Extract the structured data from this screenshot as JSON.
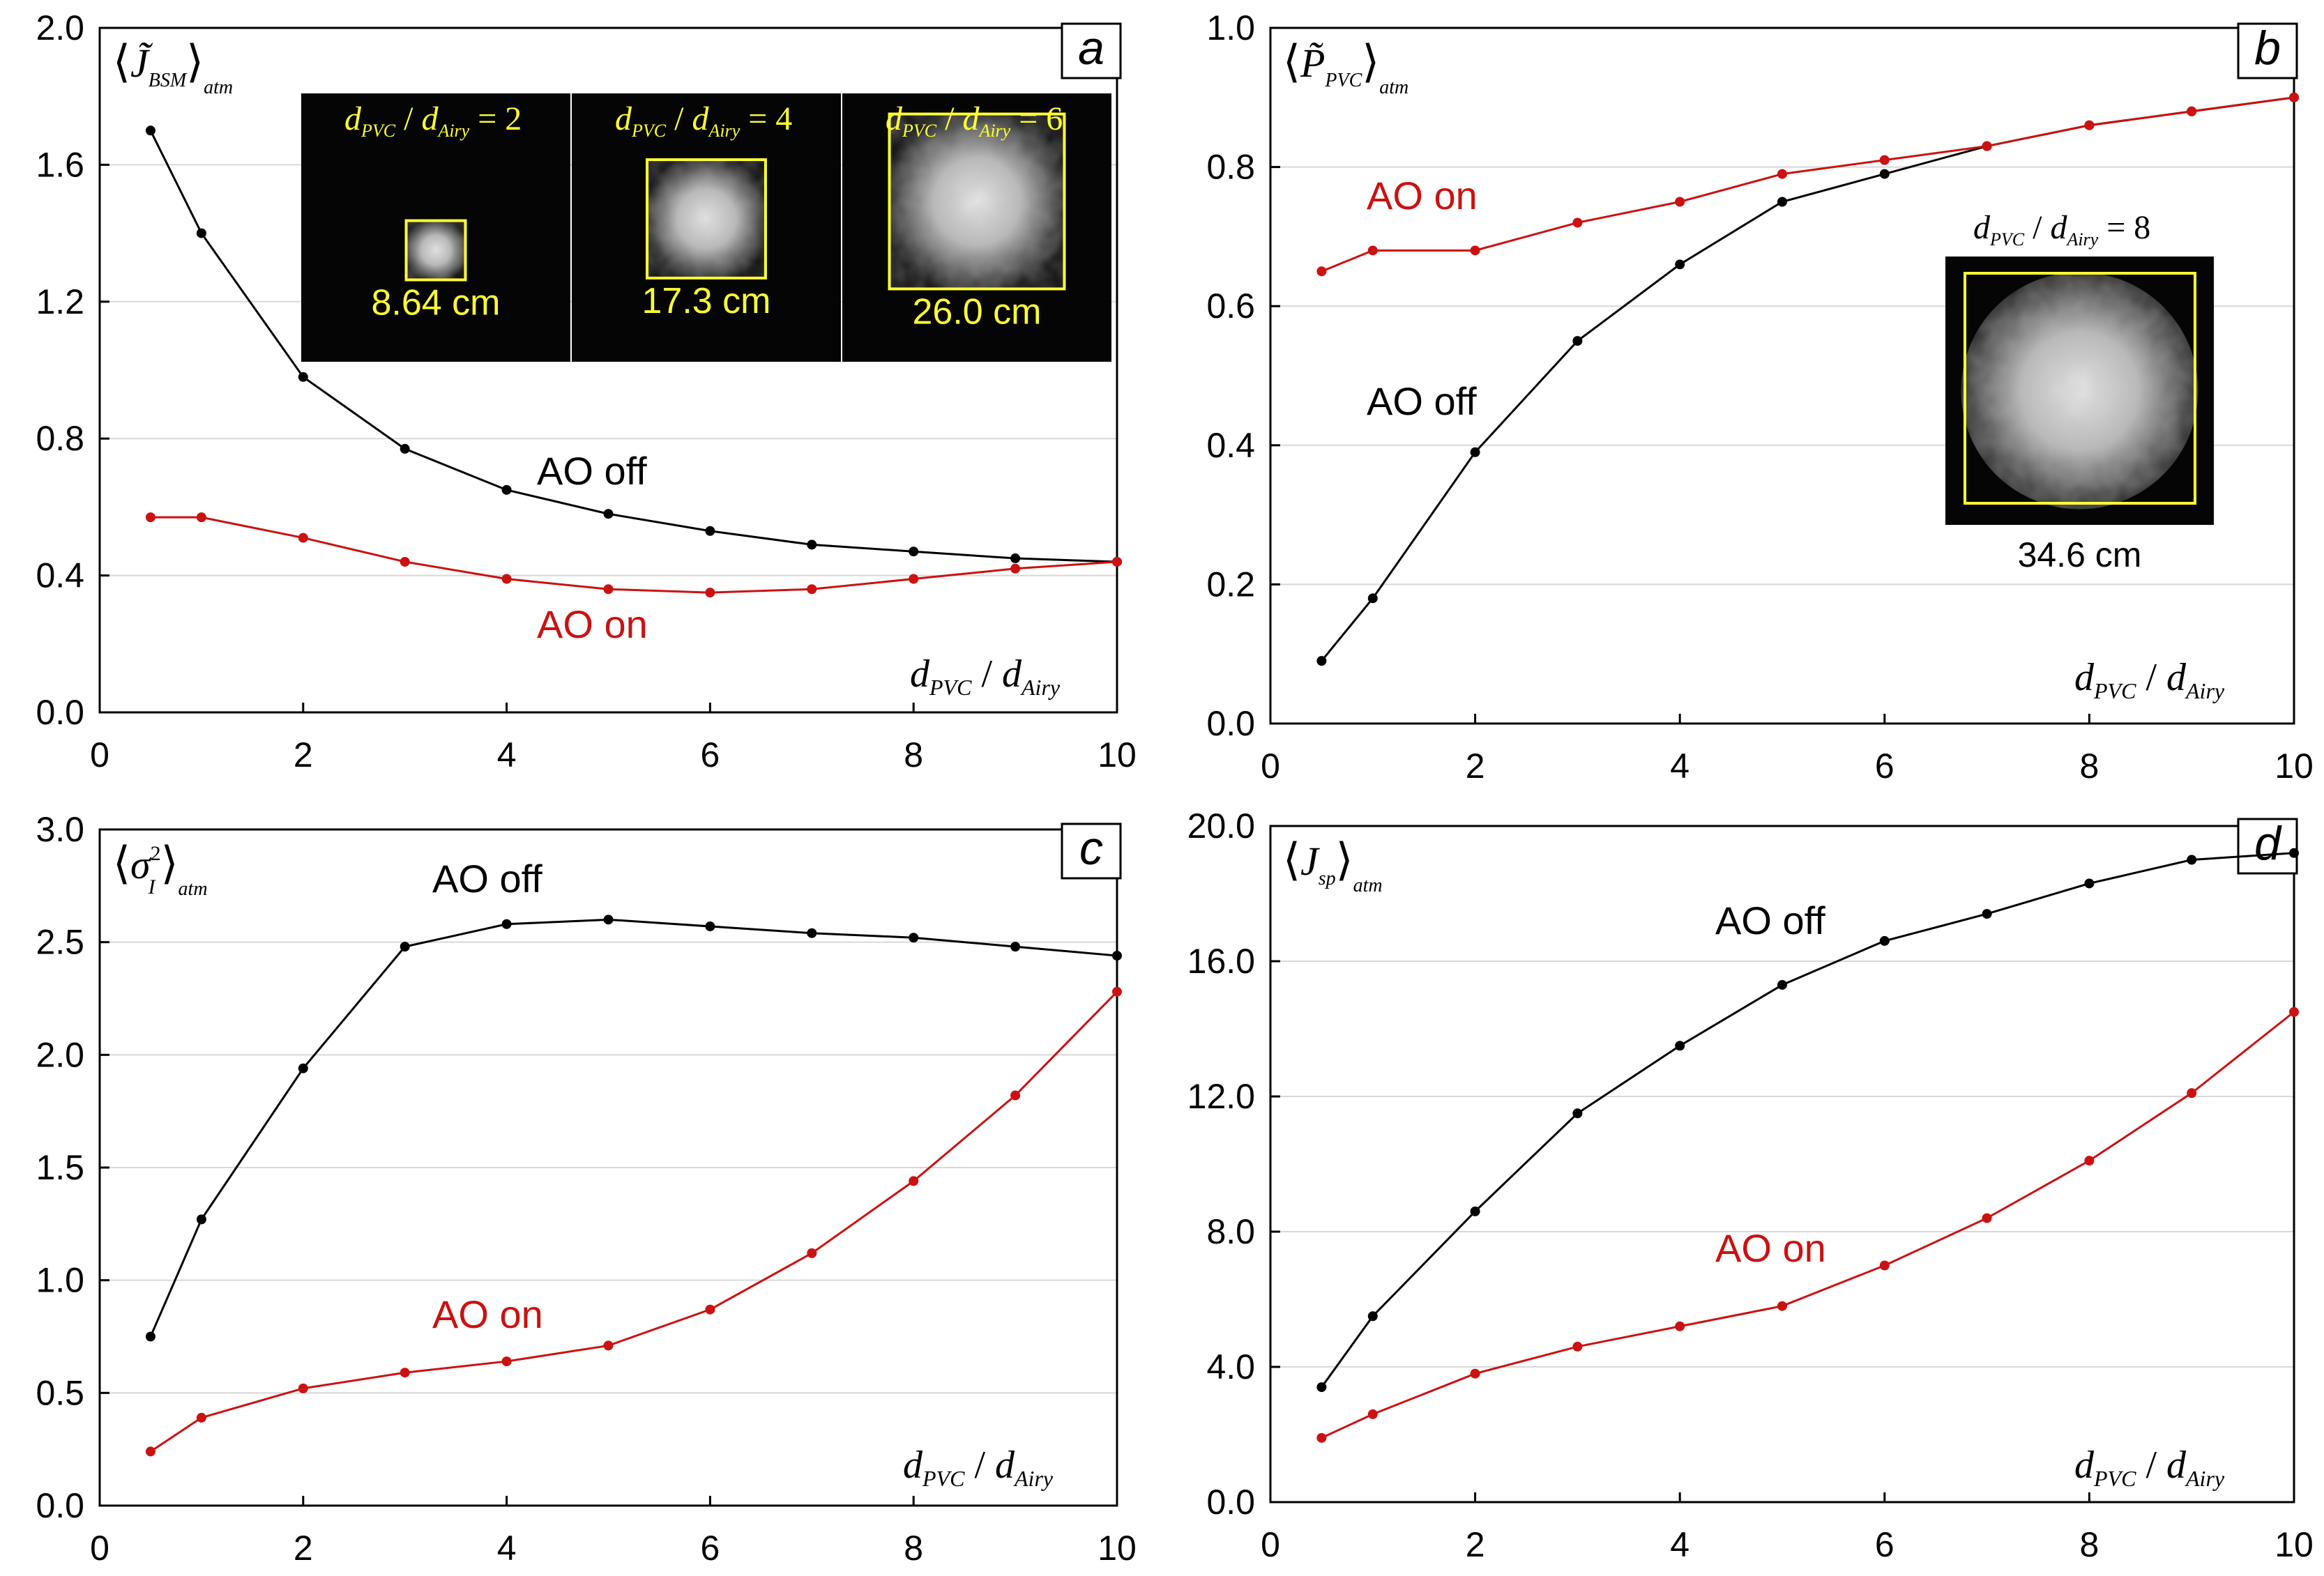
{
  "chart_data": [
    {
      "type": "line",
      "panel": "a",
      "ylabel": "⟨J̃_BSM⟩_atm",
      "ylabel_parts": {
        "open": "⟨",
        "symbol": "J̃",
        "sub": "BSM",
        "close": "⟩",
        "outer_sub": "atm"
      },
      "xlabel_parts": {
        "num": "d",
        "num_sub": "PVC",
        "sep": " / ",
        "den": "d",
        "den_sub": "Airy"
      },
      "xlim": [
        0,
        10
      ],
      "ylim": [
        0,
        2.0
      ],
      "x_ticks": [
        "0",
        "2",
        "4",
        "6",
        "8",
        "10"
      ],
      "y_ticks": [
        "0.0",
        "0.4",
        "0.8",
        "1.2",
        "1.6",
        "2.0"
      ],
      "grid": true,
      "series": [
        {
          "name": "AO off",
          "color": "#000000",
          "x": [
            0.5,
            1,
            2,
            3,
            4,
            5,
            6,
            7,
            8,
            9,
            10
          ],
          "y": [
            1.7,
            1.4,
            0.98,
            0.77,
            0.65,
            0.58,
            0.53,
            0.49,
            0.47,
            0.45,
            0.44
          ]
        },
        {
          "name": "AO on",
          "color": "#cc1111",
          "x": [
            0.5,
            1,
            2,
            3,
            4,
            5,
            6,
            7,
            8,
            9,
            10
          ],
          "y": [
            0.57,
            0.57,
            0.51,
            0.44,
            0.39,
            0.36,
            0.35,
            0.36,
            0.39,
            0.42,
            0.44
          ]
        }
      ],
      "insets": [
        {
          "label_parts": {
            "num": "d",
            "num_sub": "PVC",
            "sep": " / ",
            "den": "d",
            "den_sub": "Airy",
            "eq": " = 2"
          },
          "caption": "8.64 cm",
          "box_frac": 0.22
        },
        {
          "label_parts": {
            "num": "d",
            "num_sub": "PVC",
            "sep": " / ",
            "den": "d",
            "den_sub": "Airy",
            "eq": " = 4"
          },
          "caption": "17.3 cm",
          "box_frac": 0.44
        },
        {
          "label_parts": {
            "num": "d",
            "num_sub": "PVC",
            "sep": " / ",
            "den": "d",
            "den_sub": "Airy",
            "eq": " = 6"
          },
          "caption": "26.0 cm",
          "box_frac": 0.65
        }
      ]
    },
    {
      "type": "line",
      "panel": "b",
      "ylabel": "⟨P̃_PVC⟩_atm",
      "ylabel_parts": {
        "open": "⟨",
        "symbol": "P̃",
        "sub": "PVC",
        "close": "⟩",
        "outer_sub": "atm"
      },
      "xlabel_parts": {
        "num": "d",
        "num_sub": "PVC",
        "sep": " / ",
        "den": "d",
        "den_sub": "Airy"
      },
      "xlim": [
        0,
        10
      ],
      "ylim": [
        0,
        1.0
      ],
      "x_ticks": [
        "0",
        "2",
        "4",
        "6",
        "8",
        "10"
      ],
      "y_ticks": [
        "0.0",
        "0.2",
        "0.4",
        "0.6",
        "0.8",
        "1.0"
      ],
      "grid": true,
      "series": [
        {
          "name": "AO off",
          "color": "#000000",
          "x": [
            0.5,
            1,
            2,
            3,
            4,
            5,
            6,
            7,
            8,
            9,
            10
          ],
          "y": [
            0.09,
            0.18,
            0.39,
            0.55,
            0.66,
            0.75,
            0.79,
            0.83,
            0.86,
            0.88,
            0.9
          ]
        },
        {
          "name": "AO on",
          "color": "#cc1111",
          "x": [
            0.5,
            1,
            2,
            3,
            4,
            5,
            6,
            7,
            8,
            9,
            10
          ],
          "y": [
            0.65,
            0.68,
            0.68,
            0.72,
            0.75,
            0.79,
            0.81,
            0.83,
            0.86,
            0.88,
            0.9
          ]
        }
      ],
      "insets": [
        {
          "label_parts": {
            "num": "d",
            "num_sub": "PVC",
            "sep": " / ",
            "den": "d",
            "den_sub": "Airy",
            "eq": " = 8"
          },
          "caption": "34.6 cm",
          "box_frac": 0.85
        }
      ]
    },
    {
      "type": "line",
      "panel": "c",
      "ylabel": "⟨σ²_I⟩_atm",
      "ylabel_parts": {
        "open": "⟨",
        "symbol": "σ",
        "sup": "2",
        "sub": "I",
        "close": "⟩",
        "outer_sub": "atm"
      },
      "xlabel_parts": {
        "num": "d",
        "num_sub": "PVC",
        "sep": " / ",
        "den": "d",
        "den_sub": "Airy"
      },
      "xlim": [
        0,
        10
      ],
      "ylim": [
        0,
        3.0
      ],
      "x_ticks": [
        "0",
        "2",
        "4",
        "6",
        "8",
        "10"
      ],
      "y_ticks": [
        "0.0",
        "0.5",
        "1.0",
        "1.5",
        "2.0",
        "2.5",
        "3.0"
      ],
      "grid": true,
      "series": [
        {
          "name": "AO off",
          "color": "#000000",
          "x": [
            0.5,
            1,
            2,
            3,
            4,
            5,
            6,
            7,
            8,
            9,
            10
          ],
          "y": [
            0.75,
            1.27,
            1.94,
            2.48,
            2.58,
            2.6,
            2.57,
            2.54,
            2.52,
            2.48,
            2.44
          ]
        },
        {
          "name": "AO on",
          "color": "#cc1111",
          "x": [
            0.5,
            1,
            2,
            3,
            4,
            5,
            6,
            7,
            8,
            9,
            10
          ],
          "y": [
            0.24,
            0.39,
            0.52,
            0.59,
            0.64,
            0.71,
            0.87,
            1.12,
            1.44,
            1.82,
            2.28
          ]
        }
      ]
    },
    {
      "type": "line",
      "panel": "d",
      "ylabel": "⟨J_sp⟩_atm",
      "ylabel_parts": {
        "open": "⟨",
        "symbol": "J",
        "sub": "sp",
        "close": "⟩",
        "outer_sub": "atm"
      },
      "xlabel_parts": {
        "num": "d",
        "num_sub": "PVC",
        "sep": " / ",
        "den": "d",
        "den_sub": "Airy"
      },
      "xlim": [
        0,
        10
      ],
      "ylim": [
        0,
        20
      ],
      "x_ticks": [
        "0",
        "2",
        "4",
        "6",
        "8",
        "10"
      ],
      "y_ticks": [
        "0.0",
        "4.0",
        "8.0",
        "12.0",
        "16.0",
        "20.0"
      ],
      "grid": true,
      "series": [
        {
          "name": "AO off",
          "color": "#000000",
          "x": [
            0.5,
            1,
            2,
            3,
            4,
            5,
            6,
            7,
            8,
            9,
            10
          ],
          "y": [
            3.4,
            5.5,
            8.6,
            11.5,
            13.5,
            15.3,
            16.6,
            17.4,
            18.3,
            19.0,
            19.2
          ]
        },
        {
          "name": "AO on",
          "color": "#cc1111",
          "x": [
            0.5,
            1,
            2,
            3,
            4,
            5,
            6,
            7,
            8,
            9,
            10
          ],
          "y": [
            1.9,
            2.6,
            3.8,
            4.6,
            5.2,
            5.8,
            7.0,
            8.4,
            10.1,
            12.1,
            14.5
          ]
        }
      ]
    }
  ]
}
